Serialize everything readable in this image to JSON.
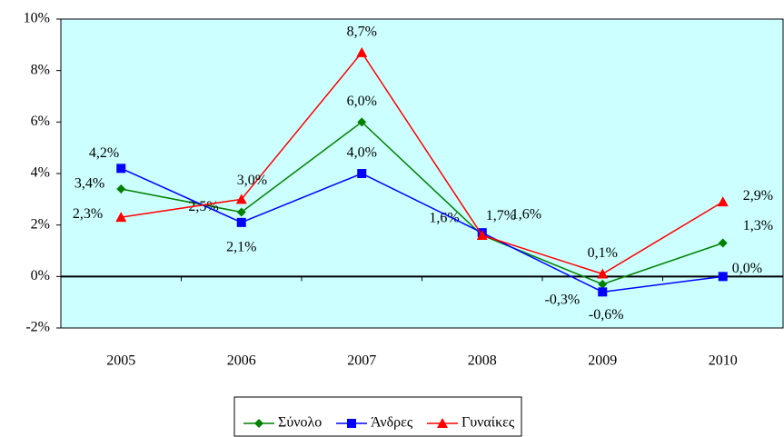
{
  "chart_data": {
    "type": "line",
    "categories": [
      "2005",
      "2006",
      "2007",
      "2008",
      "2009",
      "2010"
    ],
    "series": [
      {
        "name": "Σύνολο",
        "color": "#008000",
        "marker": "diamond",
        "values": [
          3.4,
          2.5,
          6.0,
          1.6,
          -0.3,
          1.3
        ],
        "value_labels": [
          "3,4%",
          "2,5%",
          "6,0%",
          "1,6%",
          "-0,3%",
          "1,3%"
        ]
      },
      {
        "name": "Άνδρες",
        "color": "#0000ff",
        "marker": "square",
        "values": [
          4.2,
          2.1,
          4.0,
          1.7,
          -0.6,
          0.0
        ],
        "value_labels": [
          "4,2%",
          "2,1%",
          "4,0%",
          "1,7%",
          "-0,6%",
          "0,0%"
        ]
      },
      {
        "name": "Γυναίκες",
        "color": "#ff0000",
        "marker": "triangle",
        "values": [
          2.3,
          3.0,
          8.7,
          1.6,
          0.1,
          2.9
        ],
        "value_labels": [
          "2,3%",
          "3,0%",
          "8,7%",
          "1,6%",
          "0,1%",
          "2,9%"
        ]
      }
    ],
    "ylim": [
      -2,
      10
    ],
    "yticks": [
      {
        "value": -2,
        "label": "-2%"
      },
      {
        "value": 0,
        "label": "0%"
      },
      {
        "value": 2,
        "label": "2%"
      },
      {
        "value": 4,
        "label": "4%"
      },
      {
        "value": 6,
        "label": "6%"
      },
      {
        "value": 8,
        "label": "8%"
      },
      {
        "value": 10,
        "label": "10%"
      }
    ],
    "legend": "bottom"
  }
}
